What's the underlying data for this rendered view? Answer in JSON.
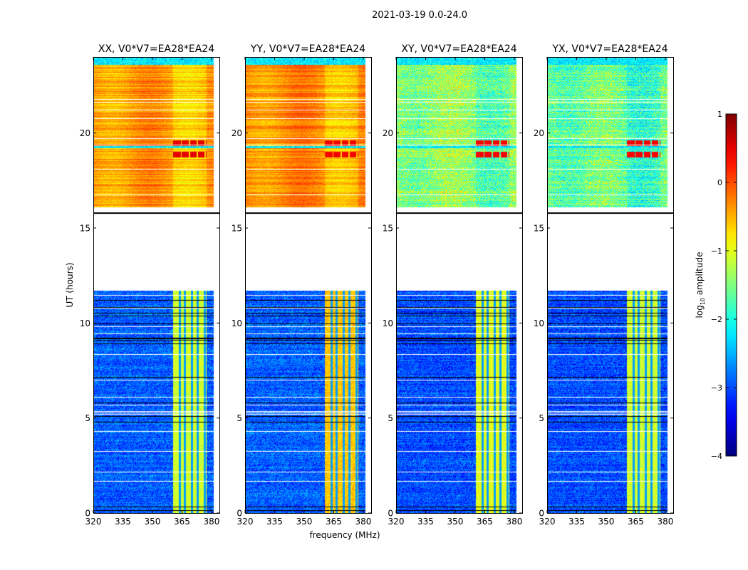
{
  "chart_data": {
    "type": "heatmap",
    "title": "2021-03-19 0.0-24.0",
    "xlabel": "frequency (MHz)",
    "ylabel": "UT (hours)",
    "xlim": [
      320,
      384
    ],
    "ylim": [
      0,
      24
    ],
    "xticks": [
      320,
      335,
      350,
      365,
      380
    ],
    "yticks": [
      0,
      5,
      10,
      15,
      20
    ],
    "panels": [
      {
        "title": "XX, V0*V7=EA28*EA24",
        "day_level": -0.35,
        "night_level": -2.9,
        "band_level": -1.1,
        "burst_level": 0.5
      },
      {
        "title": "YY, V0*V7=EA28*EA24",
        "day_level": -0.3,
        "night_level": -2.9,
        "band_level": -0.6,
        "burst_level": 0.4
      },
      {
        "title": "XY, V0*V7=EA28*EA24",
        "day_level": -1.4,
        "night_level": -3.0,
        "band_level": -1.0,
        "burst_level": 0.4
      },
      {
        "title": "YX, V0*V7=EA28*EA24",
        "day_level": -1.6,
        "night_level": -3.0,
        "band_level": -1.1,
        "burst_level": 0.4
      }
    ],
    "flagged_time_range": [
      11.7,
      15.8
    ],
    "band_freq_range": [
      360.5,
      377.5
    ],
    "burst_time_ranges": [
      [
        18.7,
        19.0
      ],
      [
        19.3,
        19.6
      ]
    ],
    "colorbar": {
      "label": "log",
      "label_sub": "10",
      "label_rest": " amplitude",
      "range": [
        -4,
        1
      ],
      "ticks": [
        "1",
        "0",
        "−1",
        "−2",
        "−3",
        "−4"
      ],
      "tick_values": [
        1,
        0,
        -1,
        -2,
        -3,
        -4
      ],
      "colormap": "jet"
    }
  }
}
